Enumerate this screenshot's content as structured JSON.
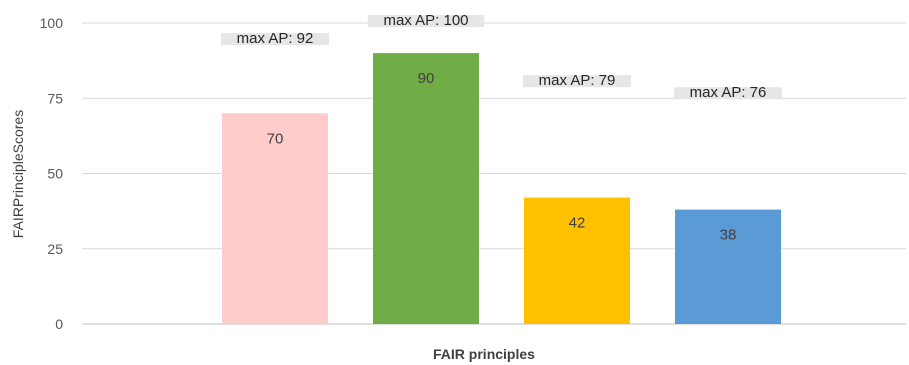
{
  "chart_data": {
    "type": "bar",
    "title": "",
    "xlabel": "FAIR principles",
    "ylabel": "FAIRPrincipleScores",
    "ylim": [
      0,
      100
    ],
    "yticks": [
      "0",
      "25",
      "50",
      "75",
      "100"
    ],
    "grid": "horizontal",
    "legend": "none",
    "values": [
      70,
      90,
      42,
      38
    ],
    "data_labels": [
      "70",
      "90",
      "42",
      "38"
    ],
    "colors": [
      "#ffcccc",
      "#70ad47",
      "#ffc000",
      "#5b9bd5"
    ],
    "annotations": [
      "max AP: 92",
      "max AP: 100",
      "max AP: 79",
      "max AP: 76"
    ],
    "annotation_levels": [
      94,
      100,
      80,
      76
    ]
  }
}
